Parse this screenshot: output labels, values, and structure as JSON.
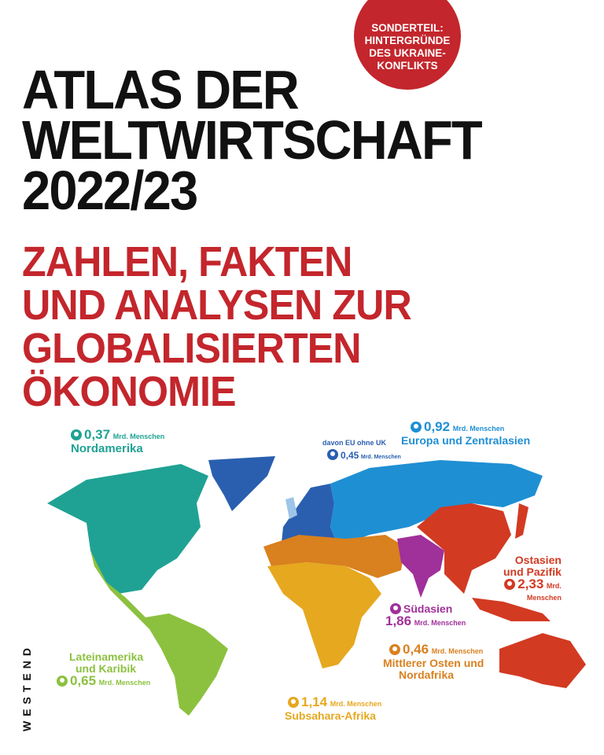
{
  "badge": {
    "lines": [
      "SONDERTEIL:",
      "HINTERGRÜNDE",
      "DES UKRAINE-",
      "KONFLIKTS"
    ],
    "color": "#c3262c"
  },
  "title": {
    "lines": [
      "ATLAS DER",
      "WELTWIRTSCHAFT",
      "2022/23"
    ]
  },
  "subtitle": {
    "lines": [
      "ZAHLEN, FAKTEN",
      "UND ANALYSEN ZUR",
      "GLOBALISIERTEN",
      "ÖKONOMIE"
    ],
    "color": "#c3262c"
  },
  "publisher": "WESTEND",
  "map": {
    "unit": "Mrd. Menschen",
    "regions": [
      {
        "name": "Nordamerika",
        "population": "0,37",
        "color": "#1fa294",
        "icon": "people-icon"
      },
      {
        "name": "Europa und Zentralasien",
        "population": "0,92",
        "color": "#1f8fd4",
        "icon": "people-icon"
      },
      {
        "name": "davon EU ohne UK",
        "population": "0,45",
        "color": "#2a5fb0",
        "icon": "people-icon"
      },
      {
        "name": "Ostasien und Pazifik",
        "name_lines": [
          "Ostasien",
          "und Pazifik"
        ],
        "population": "2,33",
        "unit_lines": [
          "Mrd.",
          "Menschen"
        ],
        "color": "#d23a22",
        "icon": "people-icon"
      },
      {
        "name": "Südasien",
        "population": "1,86",
        "color": "#a0309a",
        "icon": "people-icon"
      },
      {
        "name": "Mittlerer Osten und Nordafrika",
        "name_lines": [
          "Mittlerer Osten und",
          "Nordafrika"
        ],
        "population": "0,46",
        "color": "#d9801f",
        "icon": "people-icon"
      },
      {
        "name": "Subsahara-Afrika",
        "population": "1,14",
        "color": "#e6a81f",
        "icon": "people-icon"
      },
      {
        "name": "Lateinamerika und Karibik",
        "name_lines": [
          "Lateinamerika",
          "und Karibik"
        ],
        "population": "0,65",
        "color": "#8cc13f",
        "icon": "people-icon"
      }
    ]
  }
}
